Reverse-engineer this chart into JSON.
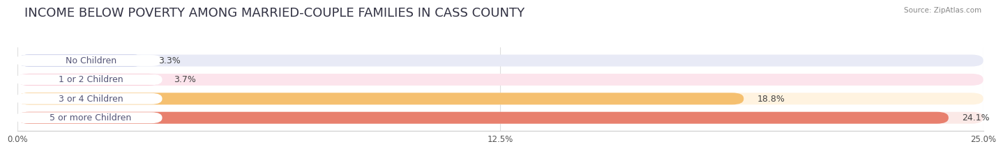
{
  "title": "INCOME BELOW POVERTY AMONG MARRIED-COUPLE FAMILIES IN CASS COUNTY",
  "source": "Source: ZipAtlas.com",
  "categories": [
    "No Children",
    "1 or 2 Children",
    "3 or 4 Children",
    "5 or more Children"
  ],
  "values": [
    3.3,
    3.7,
    18.8,
    24.1
  ],
  "bar_colors": [
    "#b0b8e0",
    "#f4a8bc",
    "#f5c070",
    "#e8806e"
  ],
  "bar_bg_colors": [
    "#e8eaf6",
    "#fce4ec",
    "#fff3e0",
    "#fbe9e7"
  ],
  "xlim": [
    0,
    25.0
  ],
  "xticks": [
    0.0,
    12.5,
    25.0
  ],
  "xtick_labels": [
    "0.0%",
    "12.5%",
    "25.0%"
  ],
  "title_fontsize": 13,
  "label_fontsize": 9,
  "value_fontsize": 9,
  "background_color": "#ffffff",
  "grid_color": "#dddddd",
  "text_color": "#555577"
}
